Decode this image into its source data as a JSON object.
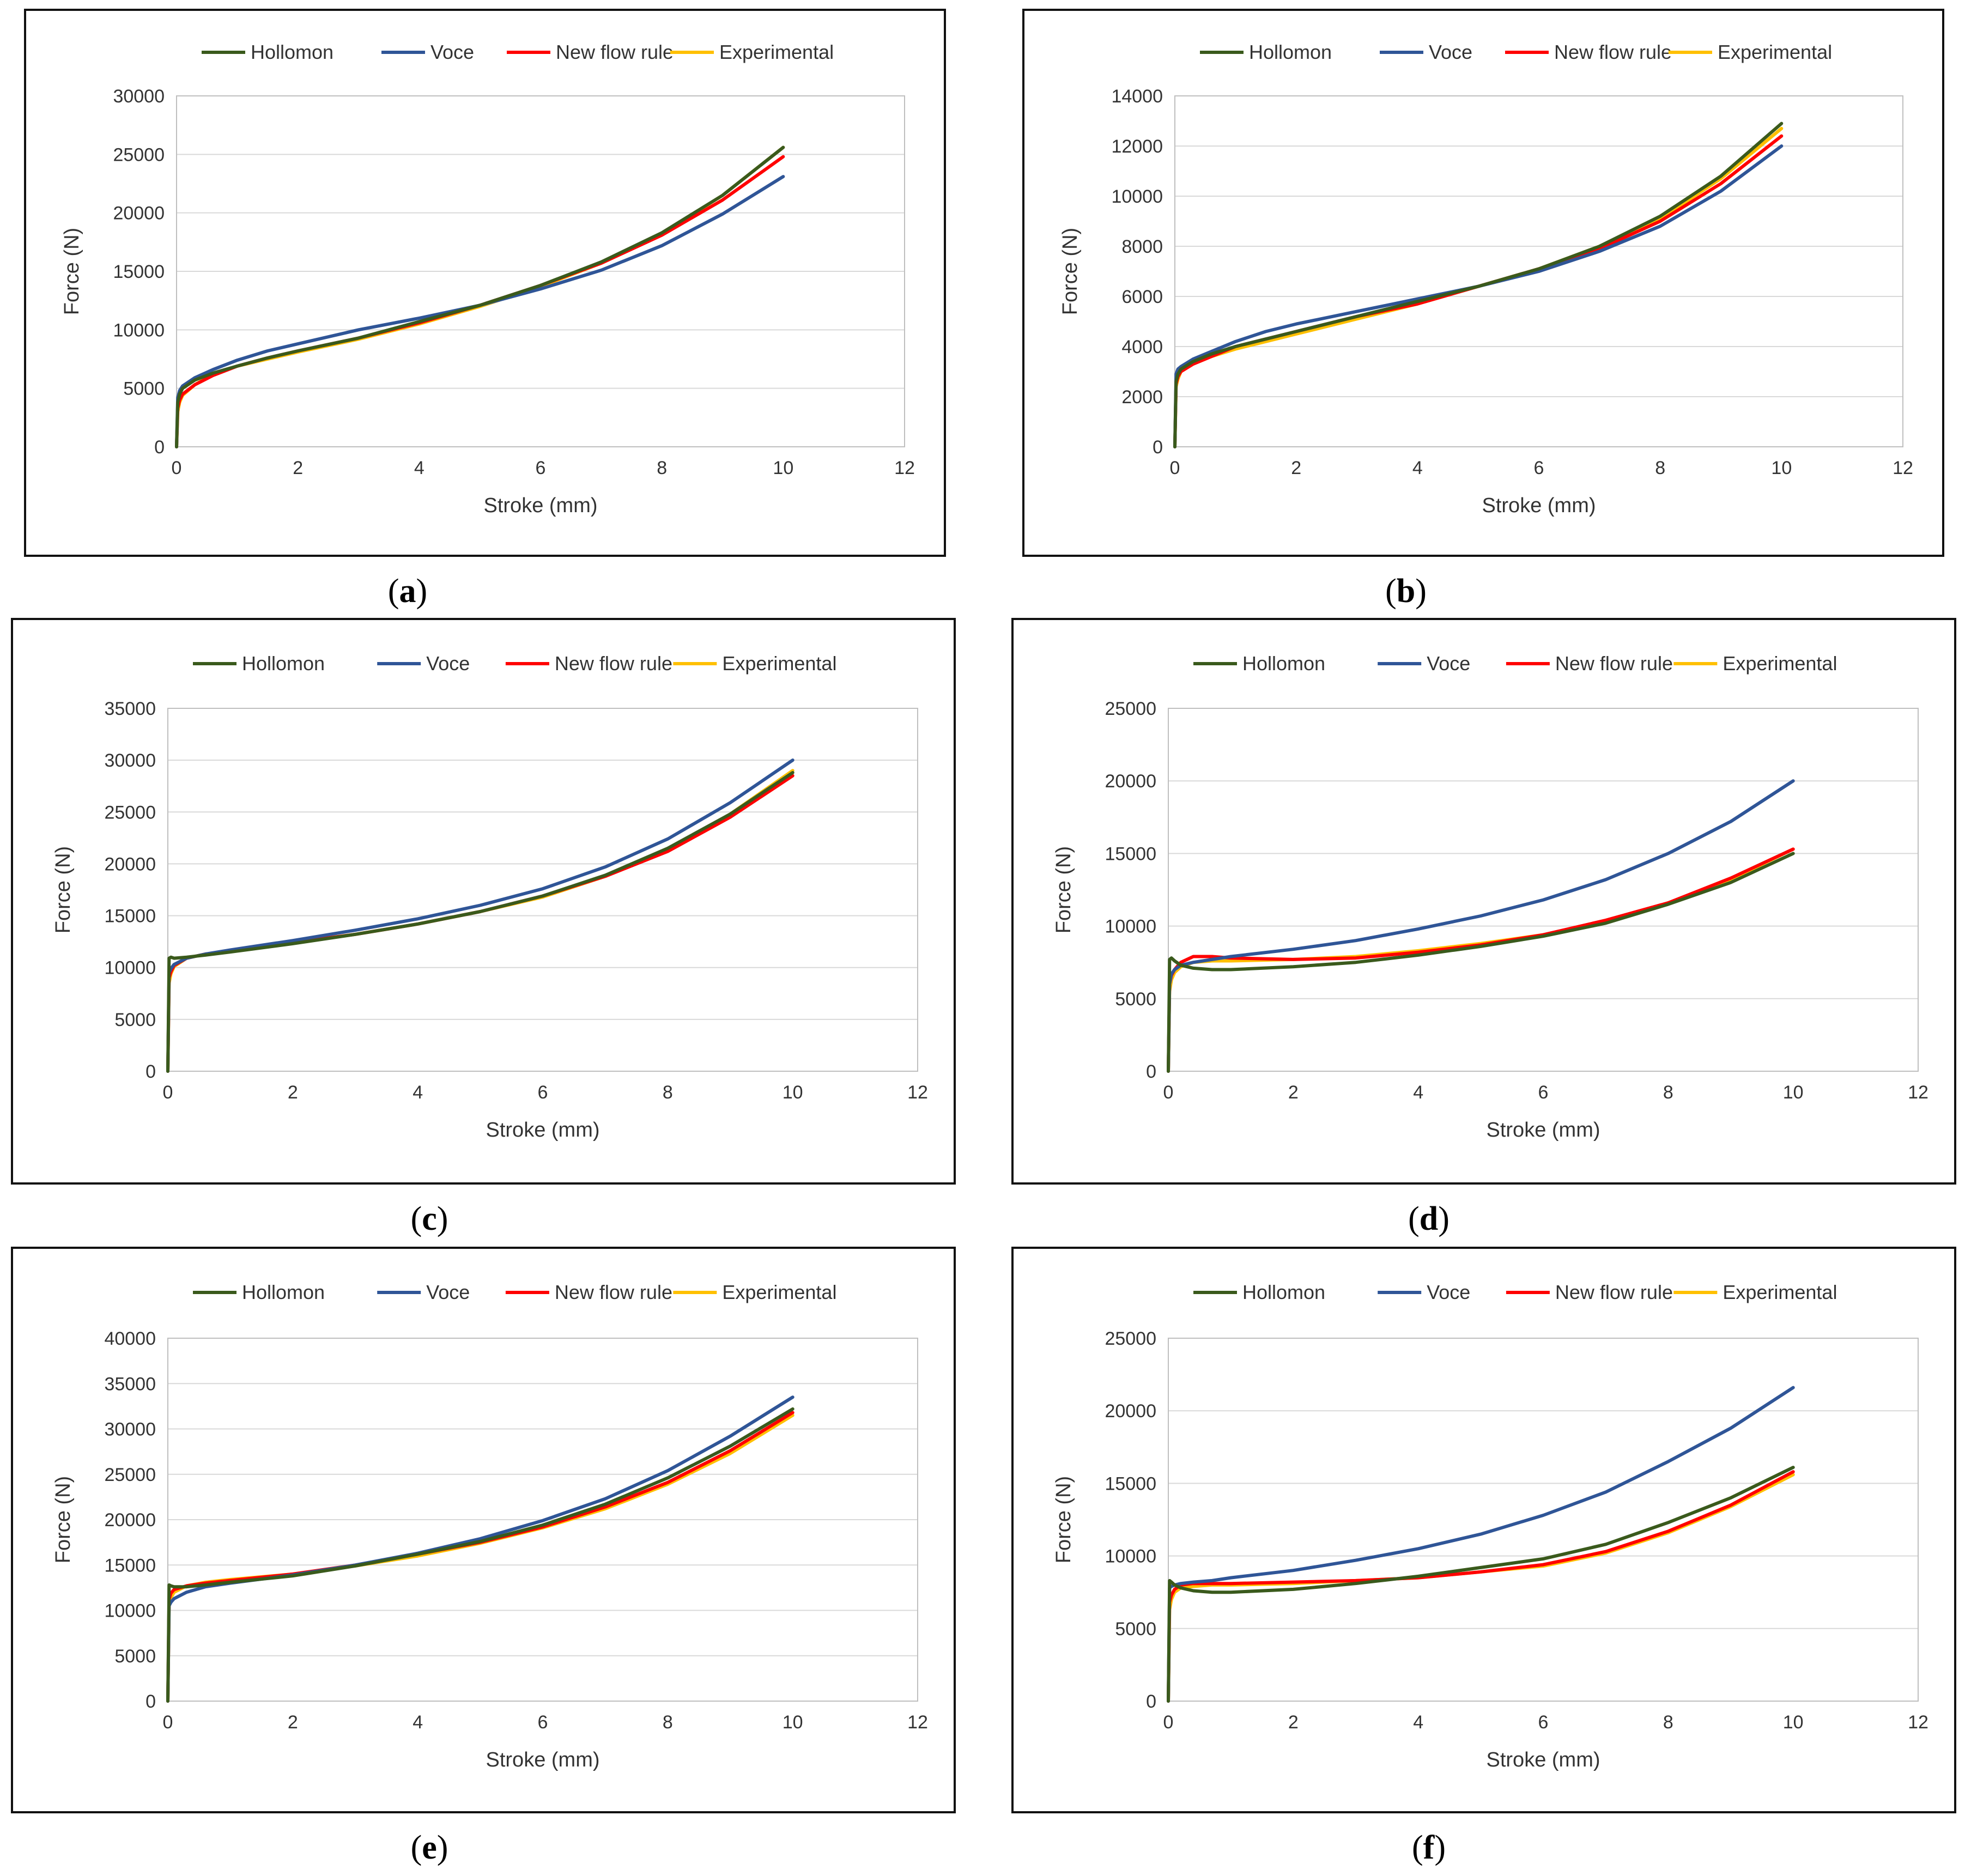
{
  "figure": {
    "legend_labels": [
      "Hollomon",
      "Voce",
      "New flow rule",
      "Experimental"
    ],
    "series_colors": {
      "Hollomon": "#3a5a1c",
      "Voce": "#2f5597",
      "New flow rule": "#ff0000",
      "Experimental": "#ffc000"
    }
  },
  "chart_data": [
    {
      "panel": "a",
      "caption": "(a)",
      "type": "line",
      "xlabel": "Stroke (mm)",
      "ylabel": "Force (N)",
      "xlim": [
        0,
        12
      ],
      "ylim": [
        0,
        30000
      ],
      "xticks": [
        0,
        2,
        4,
        6,
        8,
        10,
        12
      ],
      "yticks": [
        0,
        5000,
        10000,
        15000,
        20000,
        25000,
        30000
      ],
      "grid": "horizontal",
      "legend": "top",
      "series": [
        {
          "name": "Hollomon",
          "x": [
            0,
            0.02,
            0.05,
            0.1,
            0.3,
            0.6,
            1,
            1.5,
            2,
            3,
            4,
            5,
            6,
            7,
            8,
            9,
            10
          ],
          "y": [
            0,
            3800,
            4500,
            5000,
            5700,
            6300,
            6900,
            7600,
            8200,
            9300,
            10700,
            12100,
            13800,
            15800,
            18300,
            21500,
            25600
          ]
        },
        {
          "name": "Voce",
          "x": [
            0,
            0.02,
            0.05,
            0.1,
            0.3,
            0.6,
            1,
            1.5,
            2,
            3,
            4,
            5,
            6,
            7,
            8,
            9,
            10
          ],
          "y": [
            0,
            4200,
            4800,
            5200,
            5900,
            6600,
            7400,
            8200,
            8800,
            10000,
            11000,
            12100,
            13500,
            15100,
            17200,
            19900,
            23100
          ]
        },
        {
          "name": "New flow rule",
          "x": [
            0,
            0.02,
            0.05,
            0.1,
            0.3,
            0.6,
            1,
            1.5,
            2,
            3,
            4,
            5,
            6,
            7,
            8,
            9,
            10
          ],
          "y": [
            0,
            3300,
            4000,
            4500,
            5300,
            6100,
            6900,
            7600,
            8200,
            9300,
            10600,
            12100,
            13800,
            15700,
            18100,
            21100,
            24800
          ]
        },
        {
          "name": "Experimental",
          "x": [
            0,
            0.02,
            0.05,
            0.1,
            0.3,
            0.6,
            1,
            1.5,
            2,
            3,
            4,
            5,
            6,
            7,
            8,
            9,
            10
          ],
          "y": [
            0,
            3000,
            3800,
            4400,
            5300,
            6200,
            6900,
            7500,
            8100,
            9200,
            10500,
            12000,
            13700,
            15700,
            18200,
            21500,
            25600
          ]
        }
      ]
    },
    {
      "panel": "b",
      "caption": "(b)",
      "type": "line",
      "xlabel": "Stroke (mm)",
      "ylabel": "Force (N)",
      "xlim": [
        0,
        12
      ],
      "ylim": [
        0,
        14000
      ],
      "xticks": [
        0,
        2,
        4,
        6,
        8,
        10,
        12
      ],
      "yticks": [
        0,
        2000,
        4000,
        6000,
        8000,
        10000,
        12000,
        14000
      ],
      "grid": "horizontal",
      "legend": "top",
      "series": [
        {
          "name": "Hollomon",
          "x": [
            0,
            0.02,
            0.05,
            0.1,
            0.3,
            0.6,
            1,
            1.5,
            2,
            3,
            4,
            5,
            6,
            7,
            8,
            9,
            10
          ],
          "y": [
            0,
            2600,
            2900,
            3100,
            3400,
            3700,
            4000,
            4300,
            4600,
            5200,
            5800,
            6400,
            7100,
            8000,
            9200,
            10800,
            12900
          ]
        },
        {
          "name": "Voce",
          "x": [
            0,
            0.02,
            0.05,
            0.1,
            0.3,
            0.6,
            1,
            1.5,
            2,
            3,
            4,
            5,
            6,
            7,
            8,
            9,
            10
          ],
          "y": [
            0,
            2900,
            3100,
            3200,
            3500,
            3800,
            4200,
            4600,
            4900,
            5400,
            5900,
            6400,
            7000,
            7800,
            8800,
            10200,
            12000
          ]
        },
        {
          "name": "New flow rule",
          "x": [
            0,
            0.02,
            0.05,
            0.1,
            0.3,
            0.6,
            1,
            1.5,
            2,
            3,
            4,
            5,
            6,
            7,
            8,
            9,
            10
          ],
          "y": [
            0,
            2500,
            2800,
            3000,
            3300,
            3600,
            4000,
            4300,
            4600,
            5200,
            5700,
            6400,
            7100,
            7900,
            9000,
            10500,
            12400
          ]
        },
        {
          "name": "Experimental",
          "x": [
            0,
            0.02,
            0.05,
            0.1,
            0.3,
            0.6,
            1,
            1.5,
            2,
            3,
            4,
            5,
            6,
            7,
            8,
            9,
            10
          ],
          "y": [
            0,
            2400,
            2700,
            3000,
            3300,
            3600,
            3900,
            4200,
            4500,
            5100,
            5700,
            6400,
            7100,
            8000,
            9100,
            10700,
            12700
          ]
        }
      ]
    },
    {
      "panel": "c",
      "caption": "(c)",
      "type": "line",
      "xlabel": "Stroke (mm)",
      "ylabel": "Force (N)",
      "xlim": [
        0,
        12
      ],
      "ylim": [
        0,
        35000
      ],
      "xticks": [
        0,
        2,
        4,
        6,
        8,
        10,
        12
      ],
      "yticks": [
        0,
        5000,
        10000,
        15000,
        20000,
        25000,
        30000,
        35000
      ],
      "grid": "horizontal",
      "legend": "top",
      "series": [
        {
          "name": "Hollomon",
          "x": [
            0,
            0.02,
            0.05,
            0.1,
            0.3,
            0.6,
            1,
            2,
            3,
            4,
            5,
            6,
            7,
            8,
            9,
            10
          ],
          "y": [
            0,
            10900,
            11000,
            10900,
            11000,
            11200,
            11500,
            12300,
            13200,
            14200,
            15400,
            16900,
            18900,
            21500,
            24800,
            28800
          ]
        },
        {
          "name": "Voce",
          "x": [
            0,
            0.02,
            0.05,
            0.1,
            0.3,
            0.6,
            1,
            2,
            3,
            4,
            5,
            6,
            7,
            8,
            9,
            10
          ],
          "y": [
            0,
            9500,
            9900,
            10300,
            10900,
            11300,
            11700,
            12600,
            13600,
            14700,
            16000,
            17600,
            19700,
            22400,
            25900,
            30000
          ]
        },
        {
          "name": "New flow rule",
          "x": [
            0,
            0.02,
            0.05,
            0.1,
            0.3,
            0.6,
            1,
            2,
            3,
            4,
            5,
            6,
            7,
            8,
            9,
            10
          ],
          "y": [
            0,
            9000,
            9600,
            10200,
            10900,
            11300,
            11600,
            12400,
            13200,
            14200,
            15400,
            16900,
            18800,
            21200,
            24500,
            28500
          ]
        },
        {
          "name": "Experimental",
          "x": [
            0,
            0.02,
            0.05,
            0.1,
            0.3,
            0.6,
            1,
            2,
            3,
            4,
            5,
            6,
            7,
            8,
            9,
            10
          ],
          "y": [
            0,
            8500,
            9400,
            10100,
            10900,
            11300,
            11600,
            12400,
            13200,
            14200,
            15400,
            16800,
            18800,
            21400,
            24800,
            29000
          ]
        }
      ]
    },
    {
      "panel": "d",
      "caption": "(d)",
      "type": "line",
      "xlabel": "Stroke (mm)",
      "ylabel": "Force (N)",
      "xlim": [
        0,
        12
      ],
      "ylim": [
        0,
        25000
      ],
      "xticks": [
        0,
        2,
        4,
        6,
        8,
        10,
        12
      ],
      "yticks": [
        0,
        5000,
        10000,
        15000,
        20000,
        25000
      ],
      "grid": "horizontal",
      "legend": "top",
      "series": [
        {
          "name": "Hollomon",
          "x": [
            0,
            0.02,
            0.05,
            0.1,
            0.2,
            0.4,
            0.7,
            1,
            2,
            3,
            4,
            5,
            6,
            7,
            8,
            9,
            10
          ],
          "y": [
            0,
            7700,
            7800,
            7600,
            7300,
            7100,
            7000,
            7000,
            7200,
            7500,
            8000,
            8600,
            9300,
            10200,
            11500,
            13000,
            15000
          ]
        },
        {
          "name": "Voce",
          "x": [
            0,
            0.02,
            0.05,
            0.1,
            0.2,
            0.4,
            0.7,
            1,
            2,
            3,
            4,
            5,
            6,
            7,
            8,
            9,
            10
          ],
          "y": [
            0,
            6000,
            6700,
            7000,
            7300,
            7500,
            7700,
            7900,
            8400,
            9000,
            9800,
            10700,
            11800,
            13200,
            15000,
            17200,
            20000
          ]
        },
        {
          "name": "New flow rule",
          "x": [
            0,
            0.02,
            0.05,
            0.1,
            0.2,
            0.4,
            0.7,
            1,
            2,
            3,
            4,
            5,
            6,
            7,
            8,
            9,
            10
          ],
          "y": [
            0,
            6000,
            6600,
            7000,
            7500,
            7900,
            7900,
            7800,
            7700,
            7800,
            8200,
            8700,
            9400,
            10400,
            11600,
            13300,
            15300
          ]
        },
        {
          "name": "Experimental",
          "x": [
            0,
            0.02,
            0.05,
            0.1,
            0.2,
            0.4,
            0.7,
            1,
            2,
            3,
            4,
            5,
            6,
            7,
            8,
            9,
            10
          ],
          "y": [
            0,
            5500,
            6300,
            6800,
            7200,
            7500,
            7600,
            7600,
            7700,
            7900,
            8300,
            8800,
            9400,
            10300,
            11600,
            13200,
            15300
          ]
        }
      ]
    },
    {
      "panel": "e",
      "caption": "(e)",
      "type": "line",
      "xlabel": "Stroke (mm)",
      "ylabel": "Force (N)",
      "xlim": [
        0,
        12
      ],
      "ylim": [
        0,
        40000
      ],
      "xticks": [
        0,
        2,
        4,
        6,
        8,
        10,
        12
      ],
      "yticks": [
        0,
        5000,
        10000,
        15000,
        20000,
        25000,
        30000,
        35000,
        40000
      ],
      "grid": "horizontal",
      "legend": "top",
      "series": [
        {
          "name": "Hollomon",
          "x": [
            0,
            0.02,
            0.05,
            0.1,
            0.3,
            0.6,
            1,
            2,
            3,
            4,
            5,
            6,
            7,
            8,
            9,
            10
          ],
          "y": [
            0,
            12800,
            12700,
            12600,
            12600,
            12800,
            13100,
            13800,
            14900,
            16200,
            17600,
            19400,
            21700,
            24600,
            28100,
            32200
          ]
        },
        {
          "name": "Voce",
          "x": [
            0,
            0.02,
            0.05,
            0.1,
            0.3,
            0.6,
            1,
            2,
            3,
            4,
            5,
            6,
            7,
            8,
            9,
            10
          ],
          "y": [
            0,
            10500,
            10900,
            11300,
            12000,
            12600,
            13000,
            13900,
            15000,
            16300,
            17900,
            19900,
            22300,
            25400,
            29200,
            33500
          ]
        },
        {
          "name": "New flow rule",
          "x": [
            0,
            0.02,
            0.05,
            0.1,
            0.3,
            0.6,
            1,
            2,
            3,
            4,
            5,
            6,
            7,
            8,
            9,
            10
          ],
          "y": [
            0,
            11200,
            11900,
            12300,
            12700,
            13000,
            13300,
            14000,
            15000,
            16200,
            17500,
            19200,
            21400,
            24100,
            27600,
            31800
          ]
        },
        {
          "name": "Experimental",
          "x": [
            0,
            0.02,
            0.05,
            0.1,
            0.3,
            0.6,
            1,
            2,
            3,
            4,
            5,
            6,
            7,
            8,
            9,
            10
          ],
          "y": [
            0,
            10500,
            11400,
            12000,
            12700,
            13100,
            13400,
            14000,
            14900,
            16000,
            17400,
            19100,
            21200,
            23900,
            27300,
            31500
          ]
        }
      ]
    },
    {
      "panel": "f",
      "caption": "(f)",
      "type": "line",
      "xlabel": "Stroke (mm)",
      "ylabel": "Force (N)",
      "xlim": [
        0,
        12
      ],
      "ylim": [
        0,
        25000
      ],
      "xticks": [
        0,
        2,
        4,
        6,
        8,
        10,
        12
      ],
      "yticks": [
        0,
        5000,
        10000,
        15000,
        20000,
        25000
      ],
      "grid": "horizontal",
      "legend": "top",
      "series": [
        {
          "name": "Hollomon",
          "x": [
            0,
            0.02,
            0.05,
            0.1,
            0.2,
            0.4,
            0.7,
            1,
            2,
            3,
            4,
            5,
            6,
            7,
            8,
            9,
            10
          ],
          "y": [
            0,
            8300,
            8200,
            8000,
            7800,
            7600,
            7500,
            7500,
            7700,
            8100,
            8600,
            9200,
            9800,
            10800,
            12300,
            14000,
            16100
          ]
        },
        {
          "name": "Voce",
          "x": [
            0,
            0.02,
            0.05,
            0.1,
            0.2,
            0.4,
            0.7,
            1,
            2,
            3,
            4,
            5,
            6,
            7,
            8,
            9,
            10
          ],
          "y": [
            0,
            7800,
            7900,
            8000,
            8100,
            8200,
            8300,
            8500,
            9000,
            9700,
            10500,
            11500,
            12800,
            14400,
            16500,
            18800,
            21600
          ]
        },
        {
          "name": "New flow rule",
          "x": [
            0,
            0.02,
            0.05,
            0.1,
            0.2,
            0.4,
            0.7,
            1,
            2,
            3,
            4,
            5,
            6,
            7,
            8,
            9,
            10
          ],
          "y": [
            0,
            6800,
            7300,
            7700,
            8000,
            8100,
            8100,
            8100,
            8200,
            8300,
            8500,
            8900,
            9400,
            10300,
            11700,
            13500,
            15800
          ]
        },
        {
          "name": "Experimental",
          "x": [
            0,
            0.02,
            0.05,
            0.1,
            0.2,
            0.4,
            0.7,
            1,
            2,
            3,
            4,
            5,
            6,
            7,
            8,
            9,
            10
          ],
          "y": [
            0,
            6300,
            7000,
            7500,
            7800,
            7900,
            8000,
            8000,
            8100,
            8300,
            8500,
            8900,
            9300,
            10200,
            11600,
            13400,
            15600
          ]
        }
      ]
    }
  ]
}
